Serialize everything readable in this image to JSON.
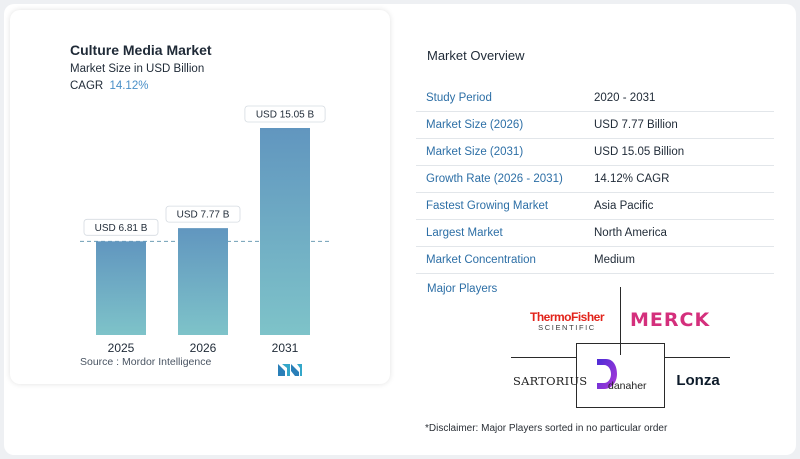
{
  "chart_data": {
    "type": "bar",
    "title": "Culture Media Market",
    "subtitle": "Market Size in USD Billion",
    "cagr_label": "CAGR",
    "cagr_value": "14.12%",
    "categories": [
      "2025",
      "2026",
      "2031"
    ],
    "values": [
      6.81,
      7.77,
      15.05
    ],
    "data_labels": [
      "USD 6.81 B",
      "USD 7.77 B",
      "USD 15.05 B"
    ],
    "ylim": [
      0,
      15.05
    ],
    "reference_line": "dashed line at 2025 value",
    "bar_color_top": "#6196bf",
    "bar_color_bottom": "#7ec3c9"
  },
  "source": "Source : Mordor Intelligence",
  "overview": {
    "title": "Market Overview",
    "rows": [
      {
        "label": "Study Period",
        "value": "2020 - 2031"
      },
      {
        "label": "Market Size (2026)",
        "value": "USD 7.77 Billion"
      },
      {
        "label": "Market Size (2031)",
        "value": "USD 15.05 Billion"
      },
      {
        "label": "Growth Rate (2026 - 2031)",
        "value": "14.12% CAGR"
      },
      {
        "label": "Fastest Growing Market",
        "value": "Asia Pacific"
      },
      {
        "label": "Largest Market",
        "value": "North America"
      },
      {
        "label": "Market Concentration",
        "value": "Medium"
      }
    ]
  },
  "players": {
    "title": "Major Players",
    "logos": {
      "thermo_line1": "ThermoFisher",
      "thermo_line2": "SCIENTIFIC",
      "merck": "MERCK",
      "sartorius": "SARTORIUS",
      "danaher": "danaher",
      "lonza": "Lonza"
    }
  },
  "disclaimer": "*Disclaimer: Major Players sorted in no particular order",
  "colors": {
    "accent_blue": "#2d6fa6",
    "thermo_red": "#e2231a",
    "merck_magenta": "#d42f7c",
    "danaher_purple": "#6b2fd6"
  }
}
